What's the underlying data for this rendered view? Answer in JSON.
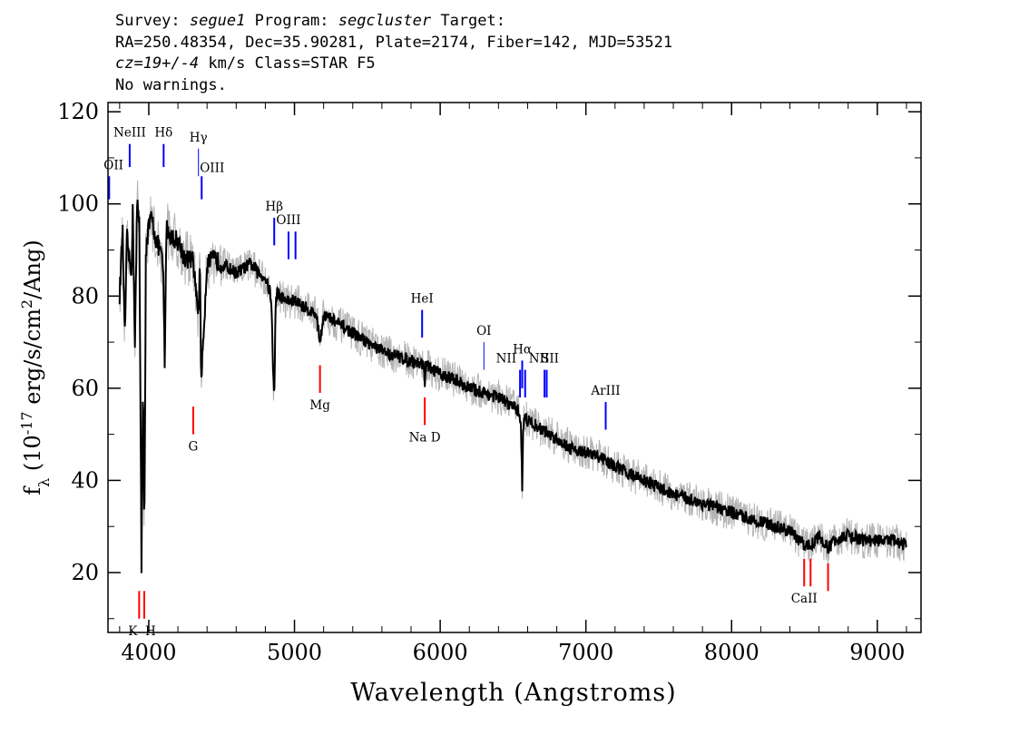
{
  "header": {
    "survey_label": "Survey:",
    "survey": "segue1",
    "program_label": "Program:",
    "program": "segcluster",
    "target_label": "Target:",
    "line2": "RA=250.48354, Dec=35.90281, Plate=2174, Fiber=142, MJD=53521",
    "cz": "cz=19+/-4",
    "cz_units": "km/s",
    "class_text": "Class=STAR F5",
    "warnings": "No warnings."
  },
  "chart_data": {
    "type": "line",
    "xlabel": "Wavelength (Angstroms)",
    "ylabel": "f_λ (10^-17 erg/s/cm^2/Ang)",
    "xlim": [
      3720,
      9300
    ],
    "ylim": [
      7,
      122
    ],
    "x_ticks": [
      4000,
      5000,
      6000,
      7000,
      8000,
      9000
    ],
    "y_ticks": [
      20,
      40,
      60,
      80,
      100,
      120
    ],
    "grid": false,
    "colors": {
      "flux": "#000000",
      "noise": "#b4b4b4",
      "emission": "#0000ff",
      "absorption": "#ff0000"
    },
    "series": [
      {
        "x": [
          3800,
          3820,
          3835,
          3850,
          3865,
          3880,
          3890,
          3905,
          3920,
          3935,
          3950,
          3960,
          3970,
          3980,
          4000,
          4020,
          4050,
          4080,
          4100,
          4110,
          4120,
          4150,
          4200,
          4250,
          4300,
          4330,
          4340,
          4350,
          4360,
          4400,
          4450,
          4500,
          4550,
          4600,
          4650,
          4700,
          4750,
          4800,
          4840,
          4855,
          4861,
          4870,
          4880,
          4900,
          4950,
          5000,
          5050,
          5100,
          5150,
          5175,
          5200,
          5250,
          5300,
          5400,
          5500,
          5600,
          5700,
          5800,
          5890,
          5895,
          5900,
          6000,
          6100,
          6200,
          6300,
          6400,
          6500,
          6540,
          6555,
          6563,
          6570,
          6580,
          6600,
          6700,
          6800,
          6900,
          7000,
          7100,
          7200,
          7400,
          7600,
          7800,
          8000,
          8200,
          8400,
          8498,
          8542,
          8600,
          8662,
          8700,
          8800,
          8900,
          9000,
          9100,
          9200
        ],
        "y": [
          80,
          95,
          70,
          93,
          88,
          85,
          98,
          70,
          100,
          96,
          22,
          60,
          28,
          90,
          95,
          97,
          92,
          90,
          85,
          62,
          95,
          93,
          92,
          88,
          88,
          80,
          75,
          88,
          62,
          87,
          88,
          87,
          86,
          85,
          86,
          87,
          85,
          84,
          80,
          62,
          57,
          78,
          81,
          80,
          79,
          79,
          78,
          77,
          76,
          70,
          76,
          75,
          74,
          72,
          70,
          68,
          67,
          66,
          65,
          60,
          65,
          63,
          62,
          60,
          59,
          58,
          56,
          55,
          52,
          38,
          52,
          54,
          53,
          51,
          49,
          47,
          46,
          45,
          43,
          40,
          37,
          35,
          33,
          31,
          29,
          26,
          26,
          28,
          25,
          27,
          28,
          27,
          27,
          27,
          26
        ]
      }
    ],
    "lines": [
      {
        "label": "OII",
        "x": 3728,
        "kind": "emission",
        "y_top": 106,
        "y_bottom": 101
      },
      {
        "label": "NeIII",
        "x": 3869,
        "kind": "emission",
        "y_top": 113,
        "y_bottom": 108
      },
      {
        "label": "Hδ",
        "x": 4102,
        "kind": "emission",
        "y_top": 113,
        "y_bottom": 108
      },
      {
        "label": "Hγ",
        "x": 4341,
        "kind": "emission_thin",
        "y_top": 112,
        "y_bottom": 106
      },
      {
        "label": "OIII",
        "x": 4363,
        "kind": "emission",
        "y_top": 106,
        "y_bottom": 101
      },
      {
        "label": "Hβ",
        "x": 4861,
        "kind": "emission",
        "y_top": 97,
        "y_bottom": 91
      },
      {
        "label": "OIII",
        "x": 4959,
        "kind": "emission",
        "y_top": 94,
        "y_bottom": 88
      },
      {
        "label": "",
        "x": 5007,
        "kind": "emission",
        "y_top": 94,
        "y_bottom": 88
      },
      {
        "label": "HeI",
        "x": 5876,
        "kind": "emission",
        "y_top": 77,
        "y_bottom": 71
      },
      {
        "label": "OI",
        "x": 6300,
        "kind": "emission_thin",
        "y_top": 70,
        "y_bottom": 64
      },
      {
        "label": "NII",
        "x": 6548,
        "kind": "emission",
        "y_top": 64,
        "y_bottom": 58
      },
      {
        "label": "Hα",
        "x": 6563,
        "kind": "emission",
        "y_top": 66,
        "y_bottom": 60
      },
      {
        "label": "NII",
        "x": 6583,
        "kind": "emission",
        "y_top": 64,
        "y_bottom": 58
      },
      {
        "label": "SII",
        "x": 6716,
        "kind": "emission",
        "y_top": 64,
        "y_bottom": 58
      },
      {
        "label": "",
        "x": 6731,
        "kind": "emission",
        "y_top": 64,
        "y_bottom": 58
      },
      {
        "label": "ArIII",
        "x": 7136,
        "kind": "emission",
        "y_top": 57,
        "y_bottom": 51
      },
      {
        "label": "K",
        "x": 3934,
        "kind": "absorption",
        "y_top": 16,
        "y_bottom": 10
      },
      {
        "label": "H",
        "x": 3969,
        "kind": "absorption",
        "y_top": 16,
        "y_bottom": 10
      },
      {
        "label": "G",
        "x": 4305,
        "kind": "absorption",
        "y_top": 56,
        "y_bottom": 50
      },
      {
        "label": "Mg",
        "x": 5175,
        "kind": "absorption",
        "y_top": 65,
        "y_bottom": 59
      },
      {
        "label": "Na D",
        "x": 5894,
        "kind": "absorption",
        "y_top": 58,
        "y_bottom": 52
      },
      {
        "label": "CaII",
        "x": 8498,
        "kind": "absorption",
        "y_top": 23,
        "y_bottom": 17
      },
      {
        "label": "",
        "x": 8542,
        "kind": "absorption",
        "y_top": 23,
        "y_bottom": 17
      },
      {
        "label": "",
        "x": 8662,
        "kind": "absorption",
        "y_top": 22,
        "y_bottom": 16
      }
    ]
  }
}
